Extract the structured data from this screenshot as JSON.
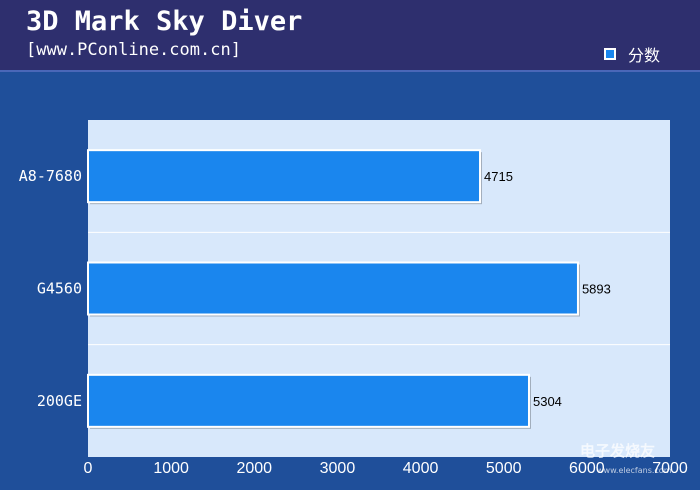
{
  "header": {
    "title": "3D Mark Sky Diver",
    "subtitle": "[www.PConline.com.cn]",
    "legend_label": "分数"
  },
  "colors": {
    "background": "#1f4f9a",
    "header_background": "#2e2f6e",
    "plot_background": "#d8e8fb",
    "bar": "#1a86ee",
    "bar_border": "#ffffff"
  },
  "watermark": {
    "text": "电子发烧友",
    "url": "www.elecfans.com"
  },
  "chart_data": {
    "type": "bar",
    "orientation": "horizontal",
    "title": "3D Mark Sky Diver",
    "subtitle": "[www.PConline.com.cn]",
    "categories": [
      "A8-7680",
      "G4560",
      "200GE"
    ],
    "series": [
      {
        "name": "分数",
        "values": [
          4715,
          5893,
          5304
        ]
      }
    ],
    "xlim": [
      0,
      7000
    ],
    "xticks": [
      0,
      1000,
      2000,
      3000,
      4000,
      5000,
      6000,
      7000
    ],
    "grid": true,
    "legend_position": "top-right",
    "data_labels": true
  }
}
